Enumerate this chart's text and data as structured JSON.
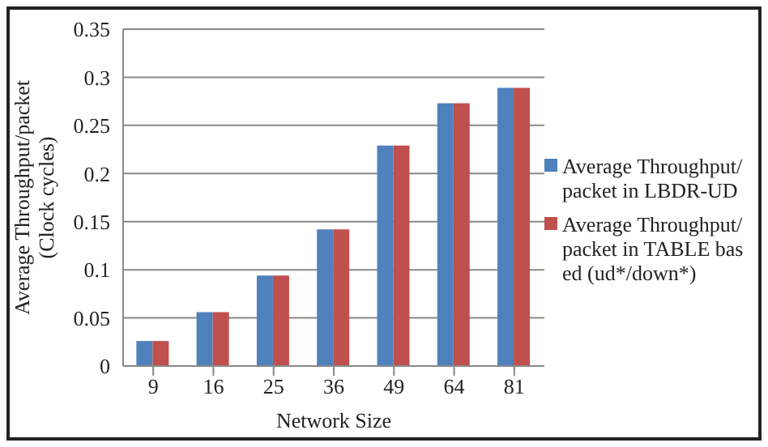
{
  "chart_data": {
    "type": "bar",
    "xlabel": "Network Size",
    "ylabel": "Average Throughput/packet (Clock cycles)",
    "categories": [
      "9",
      "16",
      "25",
      "36",
      "49",
      "64",
      "81"
    ],
    "series": [
      {
        "name": "Average Throughput/packet in LBDR-UD",
        "color": "#4f81bd",
        "values": [
          0.026,
          0.056,
          0.094,
          0.142,
          0.229,
          0.273,
          0.289
        ]
      },
      {
        "name": "Average Throughput/packet in TABLE based (ud*/down*)",
        "color": "#c0504d",
        "values": [
          0.026,
          0.056,
          0.094,
          0.142,
          0.229,
          0.273,
          0.289
        ]
      }
    ],
    "ylim": [
      0,
      0.35
    ],
    "yticks": [
      0,
      0.05,
      0.1,
      0.15,
      0.2,
      0.25,
      0.3,
      0.35
    ],
    "grid": "y",
    "legend": "right"
  }
}
